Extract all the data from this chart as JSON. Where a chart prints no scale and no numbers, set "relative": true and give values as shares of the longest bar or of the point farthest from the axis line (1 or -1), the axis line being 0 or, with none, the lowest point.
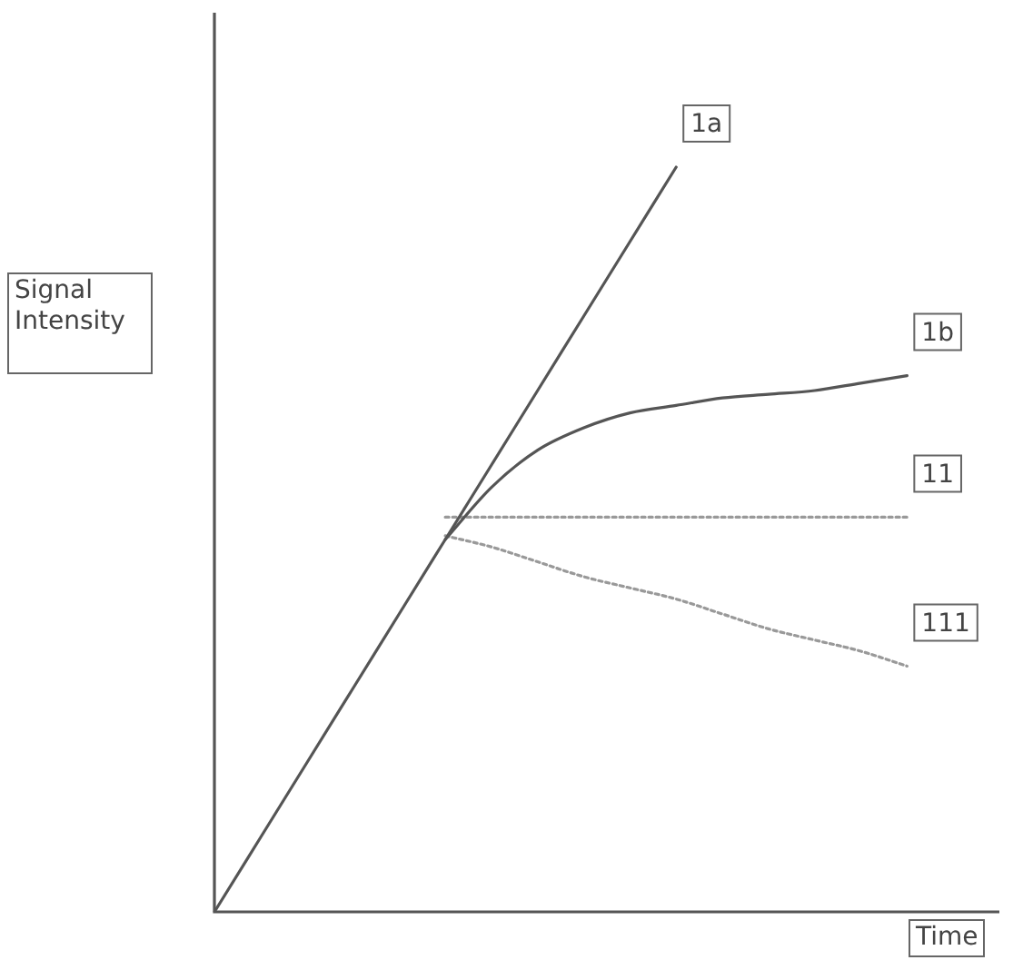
{
  "chart_data": {
    "type": "line",
    "xlabel": "Time",
    "ylabel": "Signal Intensity",
    "relative": true,
    "legend": false,
    "marker": "none",
    "line_style": "solid",
    "categories": [
      null,
      null,
      null,
      null,
      null,
      null,
      null,
      null,
      null,
      null,
      null,
      null,
      null,
      null,
      null,
      null,
      null,
      null
    ],
    "series": [
      {
        "name": "1a",
        "color": "#555555",
        "values": [
          0,
          0.1,
          0.2,
          0.3,
          0.4,
          0.5,
          0.6,
          0.7,
          0.8,
          0.9,
          1,
          null,
          null,
          null,
          null,
          null,
          null,
          null
        ]
      },
      {
        "name": "1b",
        "color": "#555555",
        "values": [
          null,
          null,
          null,
          null,
          null,
          0.5,
          0.57,
          0.62,
          0.65,
          0.67,
          0.68,
          0.69,
          0.695,
          0.7,
          0.71,
          0.72,
          null,
          null
        ]
      },
      {
        "name": "11",
        "color": "#999999",
        "line_style": "dotted",
        "values": [
          null,
          null,
          null,
          null,
          null,
          0.53,
          0.53,
          0.53,
          0.53,
          0.53,
          0.53,
          0.53,
          0.53,
          0.53,
          0.53,
          0.53,
          null,
          null
        ]
      },
      {
        "name": "111",
        "color": "#999999",
        "line_style": "dotted",
        "values": [
          null,
          null,
          null,
          null,
          null,
          0.505,
          0.49,
          0.47,
          0.45,
          0.435,
          0.42,
          0.4,
          0.38,
          0.365,
          0.35,
          0.33,
          null,
          null
        ]
      }
    ]
  }
}
